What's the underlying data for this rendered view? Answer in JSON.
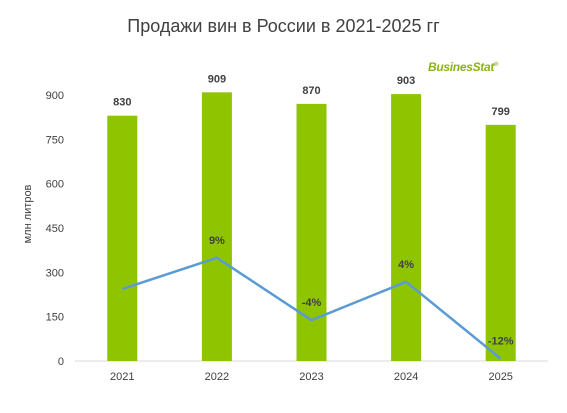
{
  "chart_data": {
    "type": "bar",
    "title": "Продажи вин в России в 2021-2025 гг",
    "ylabel": "млн литров",
    "xlabel": "",
    "categories": [
      "2021",
      "2022",
      "2023",
      "2024",
      "2025"
    ],
    "values": [
      830,
      909,
      870,
      903,
      799
    ],
    "value_labels": [
      "830",
      "909",
      "870",
      "903",
      "799"
    ],
    "ylim": [
      0,
      900
    ],
    "yticks": [
      "0",
      "150",
      "300",
      "450",
      "600",
      "750",
      "900"
    ],
    "grid": false,
    "bar_color": "#8fc400",
    "growth_line": {
      "type": "line",
      "color": "#5b9bd5",
      "values": [
        null,
        9,
        -4,
        4,
        -12
      ],
      "labels": [
        "",
        "9%",
        "-4%",
        "4%",
        "-12%"
      ]
    }
  },
  "logo": {
    "text": "BusinesStat",
    "mark": "®",
    "color": "#8bb318"
  }
}
